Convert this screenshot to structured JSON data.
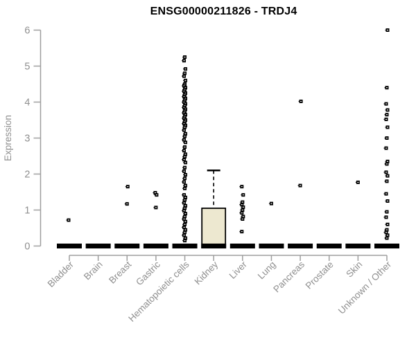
{
  "chart_data": {
    "type": "box",
    "title": "ENSG00000211826 - TRDJ4",
    "xlabel": "",
    "ylabel": "Expression",
    "ylim": [
      0,
      6
    ],
    "y_ticks": [
      0,
      1,
      2,
      3,
      4,
      5,
      6
    ],
    "grid": false,
    "legend": "none",
    "categories": [
      "Bladder",
      "Brain",
      "Breast",
      "Gastric",
      "Hematopoietic cells",
      "Kidney",
      "Liver",
      "Lung",
      "Pancreas",
      "Prostate",
      "Skin",
      "Unknown / Other"
    ],
    "colors": {
      "box_fill": "#ede8d0",
      "box_stroke": "#000000",
      "zero_bar": "#000000",
      "point": "#000000",
      "point_center": "#ffffff",
      "axis_line": "#9e9e9e",
      "axis_text": "#8f8f8f",
      "title_text": "#000000"
    },
    "series": [
      {
        "name": "Bladder",
        "median": 0,
        "zero_bar": true,
        "outliers": [
          0.72
        ]
      },
      {
        "name": "Brain",
        "median": 0,
        "zero_bar": true,
        "outliers": []
      },
      {
        "name": "Breast",
        "median": 0,
        "zero_bar": true,
        "outliers": [
          1.65,
          1.17
        ]
      },
      {
        "name": "Gastric",
        "median": 0,
        "zero_bar": true,
        "outliers": [
          1.48,
          1.42,
          1.07
        ]
      },
      {
        "name": "Hematopoietic cells",
        "median": 0,
        "zero_bar": true,
        "outliers": [
          5.25,
          5.15,
          4.92,
          4.8,
          4.72,
          4.6,
          4.5,
          4.45,
          4.4,
          4.35,
          4.3,
          4.25,
          4.2,
          4.15,
          4.1,
          4.05,
          4.0,
          3.95,
          3.9,
          3.85,
          3.8,
          3.75,
          3.7,
          3.65,
          3.6,
          3.55,
          3.5,
          3.45,
          3.4,
          3.35,
          3.3,
          3.22,
          3.12,
          3.05,
          2.95,
          2.88,
          2.75,
          2.65,
          2.55,
          2.48,
          2.4,
          2.32,
          2.18,
          2.08,
          1.98,
          1.88,
          1.78,
          1.68,
          1.6,
          1.42,
          1.35,
          1.28,
          1.2,
          1.12,
          1.05,
          0.98,
          0.9,
          0.82,
          0.75,
          0.68,
          0.6,
          0.52,
          0.45,
          0.38,
          0.3,
          0.22,
          0.15
        ]
      },
      {
        "name": "Kidney",
        "median": 0,
        "zero_bar": true,
        "box": {
          "q1": 0.05,
          "q3": 1.05,
          "median": 0,
          "whisker_high": 2.1
        },
        "outliers": []
      },
      {
        "name": "Liver",
        "median": 0,
        "zero_bar": true,
        "outliers": [
          1.65,
          1.42,
          1.22,
          1.15,
          1.08,
          1.0,
          0.92,
          0.82,
          0.75,
          0.4
        ]
      },
      {
        "name": "Lung",
        "median": 0,
        "zero_bar": true,
        "outliers": [
          1.18
        ]
      },
      {
        "name": "Pancreas",
        "median": 0,
        "zero_bar": true,
        "outliers": [
          4.02,
          1.68
        ]
      },
      {
        "name": "Prostate",
        "median": 0,
        "zero_bar": true,
        "outliers": []
      },
      {
        "name": "Skin",
        "median": 0,
        "zero_bar": true,
        "outliers": [
          1.77
        ]
      },
      {
        "name": "Unknown / Other",
        "median": 0,
        "zero_bar": true,
        "outliers": [
          6.0,
          4.4,
          3.95,
          3.78,
          3.65,
          3.52,
          3.3,
          3.0,
          2.72,
          2.35,
          2.28,
          2.05,
          1.95,
          1.8,
          1.45,
          1.25,
          0.95,
          0.8,
          0.6,
          0.45,
          0.38,
          0.3,
          0.22
        ]
      }
    ]
  }
}
